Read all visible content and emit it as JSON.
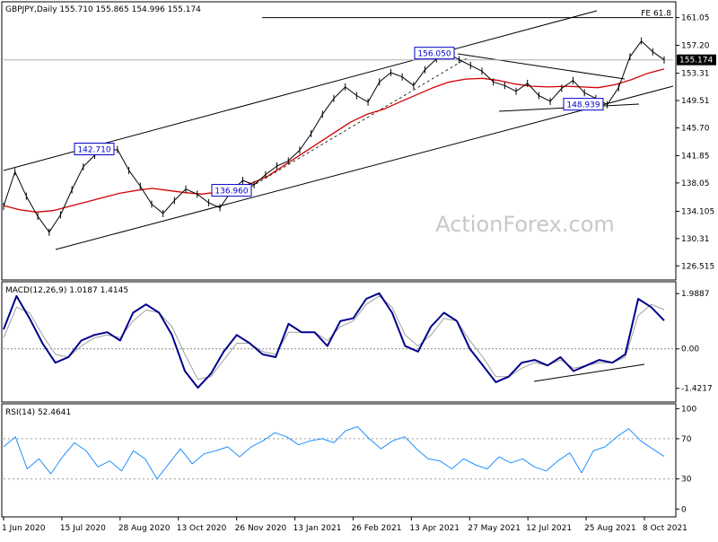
{
  "chart_data": {
    "type": "line",
    "title": "GBPJPY,Daily  155.710 155.865 154.996 155.174",
    "watermark": "ActionForex.com",
    "x_tick_labels": [
      "1 Jun 2020",
      "15 Jul 2020",
      "28 Aug 2020",
      "13 Oct 2020",
      "26 Nov 2020",
      "13 Jan 2021",
      "26 Feb 2021",
      "13 Apr 2021",
      "27 May 2021",
      "12 Jul 2021",
      "25 Aug 2021",
      "8 Oct 2021"
    ],
    "price_panel": {
      "y_tick_labels": [
        "161.05",
        "157.20",
        "153.31",
        "149.51",
        "145.70",
        "141.85",
        "138.05",
        "134.105",
        "130.31",
        "126.515"
      ],
      "ylim": [
        124.8,
        163.0
      ],
      "current_price_label": "155.174",
      "current_price": 155.174,
      "fe_label": "FE 61.8",
      "fe_level": 161.05,
      "annotations": [
        {
          "text": "142.710",
          "value": 142.71
        },
        {
          "text": "136.960",
          "value": 136.96
        },
        {
          "text": "156.050",
          "value": 156.05
        },
        {
          "text": "148.939",
          "value": 148.939
        }
      ],
      "series": [
        {
          "name": "GBPJPY",
          "color": "#000000",
          "values": [
            134.8,
            139.6,
            136.2,
            133.4,
            131.2,
            133.6,
            137.1,
            140.3,
            141.9,
            142.5,
            142.7,
            139.8,
            137.6,
            135.1,
            133.8,
            135.6,
            137.2,
            136.5,
            135.3,
            134.6,
            136.9,
            138.4,
            137.8,
            139.2,
            140.4,
            141.1,
            142.6,
            144.9,
            147.6,
            149.8,
            151.4,
            150.2,
            149.3,
            152.1,
            153.4,
            152.8,
            151.6,
            153.8,
            155.3,
            156.05,
            155.2,
            154.4,
            153.6,
            152.1,
            151.6,
            150.8,
            151.9,
            150.2,
            149.4,
            151.2,
            152.3,
            150.6,
            149.8,
            148.94,
            151.3,
            155.6,
            157.8,
            156.3,
            155.174
          ]
        },
        {
          "name": "SMA",
          "color": "#d40000",
          "values": [
            134.9,
            134.3,
            134.0,
            134.2,
            134.8,
            135.4,
            136.0,
            136.6,
            137.0,
            137.3,
            137.0,
            136.7,
            136.5,
            136.8,
            137.3,
            138.0,
            139.0,
            140.5,
            142.0,
            143.5,
            145.0,
            146.5,
            147.6,
            148.3,
            149.3,
            150.3,
            151.3,
            152.1,
            152.5,
            152.6,
            152.3,
            151.8,
            151.5,
            151.4,
            151.5,
            151.4,
            151.3,
            151.7,
            152.4,
            153.3,
            153.9
          ]
        }
      ]
    },
    "macd_panel": {
      "label": "MACD(12,26,9) 1.0187 1.4145",
      "y_tick_labels": [
        "1.9887",
        "0.00",
        "-1.4217"
      ],
      "ylim": [
        -1.85,
        2.35
      ],
      "series": [
        {
          "name": "MACD",
          "color": "#00008b",
          "values": [
            0.7,
            1.9,
            1.1,
            0.2,
            -0.5,
            -0.3,
            0.3,
            0.5,
            0.6,
            0.3,
            1.3,
            1.6,
            1.3,
            0.5,
            -0.8,
            -1.4,
            -0.9,
            -0.1,
            0.5,
            0.2,
            -0.2,
            -0.3,
            0.9,
            0.6,
            0.6,
            0.1,
            1.0,
            1.1,
            1.8,
            2.0,
            1.3,
            0.1,
            -0.1,
            0.8,
            1.3,
            1.0,
            0.0,
            -0.6,
            -1.2,
            -1.0,
            -0.5,
            -0.4,
            -0.6,
            -0.3,
            -0.8,
            -0.6,
            -0.4,
            -0.5,
            -0.2,
            1.8,
            1.5,
            1.0187
          ]
        },
        {
          "name": "Signal",
          "color": "#a0a0a0",
          "values": [
            0.4,
            1.5,
            1.3,
            0.5,
            -0.2,
            -0.3,
            0.1,
            0.4,
            0.5,
            0.4,
            1.0,
            1.4,
            1.3,
            0.8,
            -0.2,
            -1.1,
            -1.0,
            -0.4,
            0.2,
            0.2,
            -0.1,
            -0.2,
            0.6,
            0.6,
            0.6,
            0.3,
            0.8,
            1.0,
            1.6,
            1.9,
            1.5,
            0.5,
            0.1,
            0.5,
            1.1,
            1.0,
            0.3,
            -0.3,
            -1.0,
            -1.0,
            -0.7,
            -0.5,
            -0.6,
            -0.4,
            -0.7,
            -0.6,
            -0.5,
            -0.5,
            -0.3,
            1.2,
            1.6,
            1.4145
          ]
        }
      ]
    },
    "rsi_panel": {
      "label": "RSI(14) 52.4641",
      "y_tick_labels": [
        "100",
        "70",
        "30",
        "0"
      ],
      "ylim": [
        -6,
        103
      ],
      "series": [
        {
          "name": "RSI",
          "color": "#1e90ff",
          "values": [
            62,
            72,
            40,
            50,
            35,
            52,
            66,
            58,
            42,
            48,
            38,
            58,
            50,
            30,
            45,
            60,
            45,
            55,
            58,
            62,
            52,
            62,
            68,
            76,
            72,
            64,
            68,
            70,
            66,
            78,
            82,
            70,
            60,
            68,
            72,
            60,
            50,
            48,
            40,
            50,
            44,
            40,
            52,
            46,
            50,
            42,
            38,
            48,
            56,
            36,
            58,
            62,
            72,
            80,
            68,
            60,
            52.4641
          ]
        }
      ]
    },
    "grid": false
  }
}
